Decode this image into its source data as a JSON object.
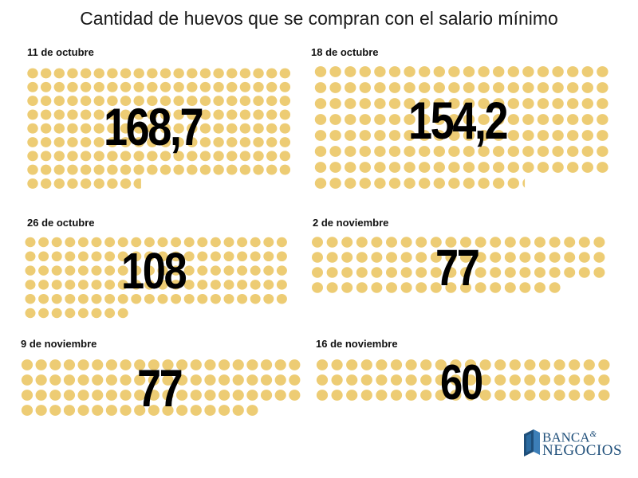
{
  "title": "Cantidad de huevos que se compran con el salario mínimo",
  "colors": {
    "egg": "#EDCC74",
    "text": "#000000",
    "logo": "#1f4f7a"
  },
  "chart_data": {
    "type": "pictograph",
    "title": "Cantidad de huevos que se compran con el salario mínimo",
    "categories": [
      "11 de octubre",
      "18 de octubre",
      "26 de octubre",
      "2 de noviembre",
      "9 de noviembre",
      "16 de noviembre"
    ],
    "values": [
      168.7,
      154.2,
      108,
      77,
      77,
      60
    ],
    "labels": [
      "168,7",
      "154,2",
      "108",
      "77",
      "77",
      "60"
    ],
    "unit_icon": "egg-icon"
  },
  "logo": {
    "line1": "BANCA",
    "amp": "&",
    "line2": "NEGOCIOS",
    "icon": "book-icon"
  }
}
